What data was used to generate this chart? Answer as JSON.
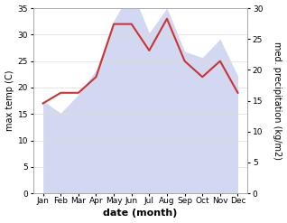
{
  "months": [
    "Jan",
    "Feb",
    "Mar",
    "Apr",
    "May",
    "Jun",
    "Jul",
    "Aug",
    "Sep",
    "Oct",
    "Nov",
    "Dec"
  ],
  "temp": [
    17,
    19,
    19,
    22,
    32,
    32,
    27,
    33,
    25,
    22,
    25,
    19
  ],
  "precip": [
    15,
    13,
    16,
    20,
    28,
    33,
    26,
    30,
    23,
    22,
    25,
    19
  ],
  "temp_color": "#cc3333",
  "precip_fill_color": "#b0b8e8",
  "ylim_left": [
    0,
    35
  ],
  "ylim_right": [
    0,
    30
  ],
  "ylabel_left": "max temp (C)",
  "ylabel_right": "med. precipitation (kg/m2)",
  "xlabel": "date (month)",
  "bg_color": "#ffffff",
  "plot_bg_color": "#ffffff",
  "label_fontsize": 7,
  "tick_fontsize": 6.5,
  "xlabel_fontsize": 8,
  "precip_alpha": 0.55
}
